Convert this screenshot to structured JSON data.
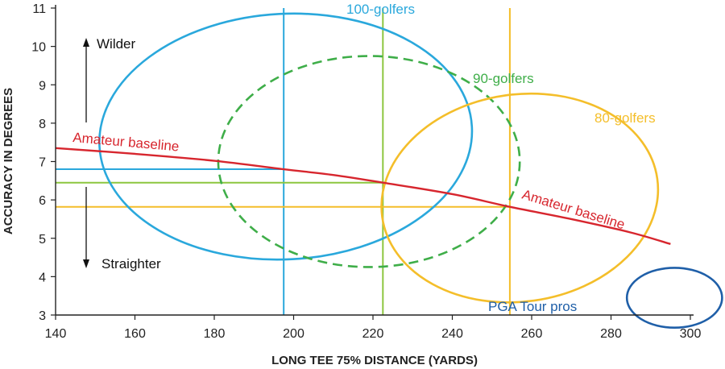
{
  "chart_data": {
    "type": "scatter",
    "xlabel": "LONG TEE 75% DISTANCE (YARDS)",
    "ylabel": "ACCURACY IN DEGREES",
    "xlim": [
      140,
      300
    ],
    "ylim": [
      3,
      11
    ],
    "xticks": [
      140,
      160,
      180,
      200,
      220,
      240,
      260,
      280,
      300
    ],
    "yticks": [
      3,
      4,
      5,
      6,
      7,
      8,
      9,
      10,
      11
    ],
    "colors": {
      "blue": "#2aa8dc",
      "green": "#3fae49",
      "green_line": "#8cc63f",
      "yellow": "#f4be2a",
      "red": "#d7262e",
      "navy": "#1f5fa8",
      "axis": "#222222"
    },
    "baseline": {
      "label": "Amateur baseline",
      "points": [
        [
          140,
          7.35
        ],
        [
          160,
          7.2
        ],
        [
          180,
          7.02
        ],
        [
          197.5,
          6.8
        ],
        [
          210,
          6.65
        ],
        [
          222.5,
          6.45
        ],
        [
          240,
          6.15
        ],
        [
          254.5,
          5.82
        ],
        [
          270,
          5.5
        ],
        [
          285,
          5.15
        ],
        [
          295,
          4.85
        ]
      ]
    },
    "ellipses": [
      {
        "name": "100-golfers",
        "label": "100-golfers",
        "color": "blue",
        "dashed": false,
        "cx": 198,
        "cy": 7.65,
        "rx": 47,
        "ry": 3.2,
        "angle": -3
      },
      {
        "name": "90-golfers",
        "label": "90-golfers",
        "color": "green",
        "dashed": true,
        "cx": 219,
        "cy": 7.0,
        "rx": 38,
        "ry": 2.75,
        "angle": 0
      },
      {
        "name": "80-golfers",
        "label": "80-golfers",
        "color": "yellow",
        "dashed": false,
        "cx": 257,
        "cy": 6.05,
        "rx": 35,
        "ry": 2.7,
        "angle": -8
      },
      {
        "name": "pga-tour-pros",
        "label": "PGA Tour pros",
        "color": "navy",
        "dashed": false,
        "cx": 296,
        "cy": 3.45,
        "rx": 12,
        "ry": 0.78,
        "angle": 0
      }
    ],
    "reference_lines": [
      {
        "name": "100-golfers",
        "color": "blue",
        "x": 197.5,
        "y": 6.8
      },
      {
        "name": "90-golfers",
        "color": "green_line",
        "x": 222.5,
        "y": 6.45
      },
      {
        "name": "80-golfers",
        "color": "yellow",
        "x": 254.5,
        "y": 5.82
      }
    ],
    "annotations": {
      "wilder": "Wilder",
      "straighter": "Straighter"
    }
  }
}
